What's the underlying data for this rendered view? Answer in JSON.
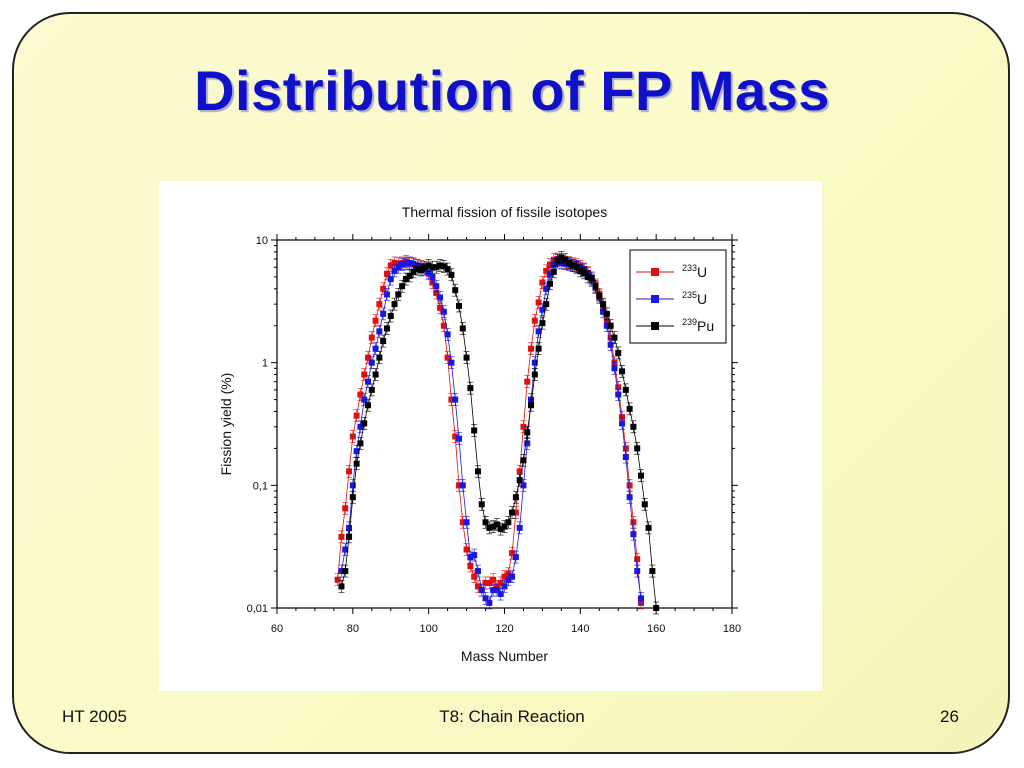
{
  "slide": {
    "title": "Distribution of FP Mass",
    "footer_left": "HT 2005",
    "footer_center": "T8: Chain Reaction",
    "footer_right": "26"
  },
  "colors": {
    "title": "#1010c8",
    "u233": "#e01010",
    "u235": "#1818e0",
    "pu239": "#000000"
  },
  "chart_data": {
    "type": "scatter",
    "title": "Thermal fission of fissile isotopes",
    "xlabel": "Mass Number",
    "ylabel": "Fission yield (%)",
    "xlim": [
      60,
      180
    ],
    "ylim": [
      0.01,
      10
    ],
    "yscale": "log",
    "xticks": [
      "60",
      "80",
      "100",
      "120",
      "140",
      "160",
      "180"
    ],
    "yticks": [
      "0,01",
      "0,1",
      "1",
      "10"
    ],
    "legend_position": "top-right",
    "series": [
      {
        "name": "233U",
        "sup": "233",
        "base": "U",
        "color": "#e01010",
        "x": [
          76,
          77,
          78,
          79,
          80,
          81,
          82,
          83,
          84,
          85,
          86,
          87,
          88,
          89,
          90,
          91,
          92,
          93,
          94,
          95,
          96,
          97,
          98,
          99,
          100,
          101,
          102,
          103,
          104,
          105,
          106,
          107,
          108,
          109,
          110,
          111,
          112,
          113,
          114,
          115,
          116,
          117,
          118,
          119,
          120,
          121,
          122,
          123,
          124,
          125,
          126,
          127,
          128,
          129,
          130,
          131,
          132,
          133,
          134,
          135,
          136,
          137,
          138,
          139,
          140,
          141,
          142,
          143,
          144,
          145,
          146,
          147,
          148,
          149,
          150,
          151,
          152,
          153,
          154,
          155,
          156
        ],
        "y": [
          0.017,
          0.038,
          0.065,
          0.13,
          0.25,
          0.37,
          0.55,
          0.8,
          1.1,
          1.6,
          2.2,
          3.0,
          4.0,
          5.3,
          6.2,
          6.5,
          6.4,
          6.5,
          6.7,
          6.4,
          6.3,
          6.2,
          6.1,
          5.8,
          5.3,
          4.5,
          3.7,
          2.8,
          2.0,
          1.1,
          0.5,
          0.25,
          0.1,
          0.05,
          0.03,
          0.022,
          0.018,
          0.015,
          0.014,
          0.016,
          0.016,
          0.017,
          0.015,
          0.016,
          0.018,
          0.019,
          0.028,
          0.06,
          0.13,
          0.3,
          0.7,
          1.3,
          2.2,
          3.1,
          4.5,
          5.6,
          6.3,
          6.9,
          7.0,
          6.9,
          6.6,
          6.5,
          6.4,
          6.3,
          6.1,
          5.8,
          5.4,
          4.8,
          4.3,
          3.6,
          2.9,
          2.2,
          1.6,
          1.0,
          0.63,
          0.36,
          0.2,
          0.1,
          0.05,
          0.025,
          0.011
        ]
      },
      {
        "name": "235U",
        "sup": "235",
        "base": "U",
        "color": "#1818e0",
        "x": [
          77,
          78,
          79,
          80,
          81,
          82,
          83,
          84,
          85,
          86,
          87,
          88,
          89,
          90,
          91,
          92,
          93,
          94,
          95,
          96,
          97,
          98,
          99,
          100,
          101,
          102,
          103,
          104,
          105,
          106,
          107,
          108,
          109,
          110,
          111,
          112,
          113,
          114,
          115,
          116,
          117,
          118,
          119,
          120,
          121,
          122,
          123,
          124,
          125,
          126,
          127,
          128,
          129,
          130,
          131,
          132,
          133,
          134,
          135,
          136,
          137,
          138,
          139,
          140,
          141,
          142,
          143,
          144,
          145,
          146,
          147,
          148,
          149,
          150,
          151,
          152,
          153,
          154,
          155,
          156
        ],
        "y": [
          0.02,
          0.03,
          0.045,
          0.1,
          0.19,
          0.3,
          0.5,
          0.7,
          1.0,
          1.3,
          1.8,
          2.5,
          3.6,
          4.8,
          5.6,
          6.0,
          6.3,
          6.4,
          6.5,
          6.4,
          6.2,
          6.0,
          5.8,
          5.4,
          5.0,
          4.2,
          3.4,
          2.6,
          1.7,
          1.0,
          0.5,
          0.24,
          0.1,
          0.05,
          0.026,
          0.027,
          0.02,
          0.014,
          0.012,
          0.011,
          0.014,
          0.014,
          0.013,
          0.015,
          0.017,
          0.018,
          0.026,
          0.045,
          0.1,
          0.22,
          0.5,
          1.0,
          1.8,
          2.7,
          4.0,
          5.3,
          6.3,
          6.6,
          6.5,
          6.4,
          6.3,
          6.2,
          6.1,
          5.9,
          5.7,
          5.3,
          4.7,
          4.1,
          3.4,
          2.6,
          2.0,
          1.4,
          0.9,
          0.55,
          0.32,
          0.17,
          0.08,
          0.04,
          0.02,
          0.012
        ]
      },
      {
        "name": "239Pu",
        "sup": "239",
        "base": "Pu",
        "color": "#000000",
        "x": [
          77,
          78,
          79,
          80,
          81,
          82,
          83,
          84,
          85,
          86,
          87,
          88,
          89,
          90,
          91,
          92,
          93,
          94,
          95,
          96,
          97,
          98,
          99,
          100,
          101,
          102,
          103,
          104,
          105,
          106,
          107,
          108,
          109,
          110,
          111,
          112,
          113,
          114,
          115,
          116,
          117,
          118,
          119,
          120,
          121,
          122,
          123,
          124,
          125,
          126,
          127,
          128,
          129,
          130,
          131,
          132,
          133,
          134,
          135,
          136,
          137,
          138,
          139,
          140,
          141,
          142,
          143,
          144,
          145,
          146,
          147,
          148,
          149,
          150,
          151,
          152,
          153,
          154,
          155,
          156,
          157,
          158,
          159,
          160
        ],
        "y": [
          0.015,
          0.02,
          0.038,
          0.08,
          0.15,
          0.22,
          0.32,
          0.45,
          0.6,
          0.8,
          1.1,
          1.5,
          1.9,
          2.4,
          3.0,
          3.6,
          4.2,
          4.8,
          5.1,
          5.5,
          5.8,
          5.7,
          6.0,
          6.2,
          6.0,
          6.0,
          6.2,
          6.1,
          5.8,
          5.2,
          3.9,
          2.9,
          1.9,
          1.1,
          0.62,
          0.28,
          0.13,
          0.07,
          0.05,
          0.045,
          0.046,
          0.048,
          0.044,
          0.046,
          0.05,
          0.06,
          0.08,
          0.11,
          0.16,
          0.27,
          0.45,
          0.8,
          1.3,
          2.1,
          3.0,
          4.4,
          5.5,
          6.8,
          7.2,
          6.9,
          6.5,
          6.2,
          6.0,
          5.6,
          5.4,
          5.0,
          4.9,
          4.2,
          3.5,
          3.0,
          2.5,
          2.0,
          1.6,
          1.2,
          0.85,
          0.6,
          0.42,
          0.3,
          0.2,
          0.12,
          0.07,
          0.045,
          0.02,
          0.01
        ]
      }
    ]
  }
}
